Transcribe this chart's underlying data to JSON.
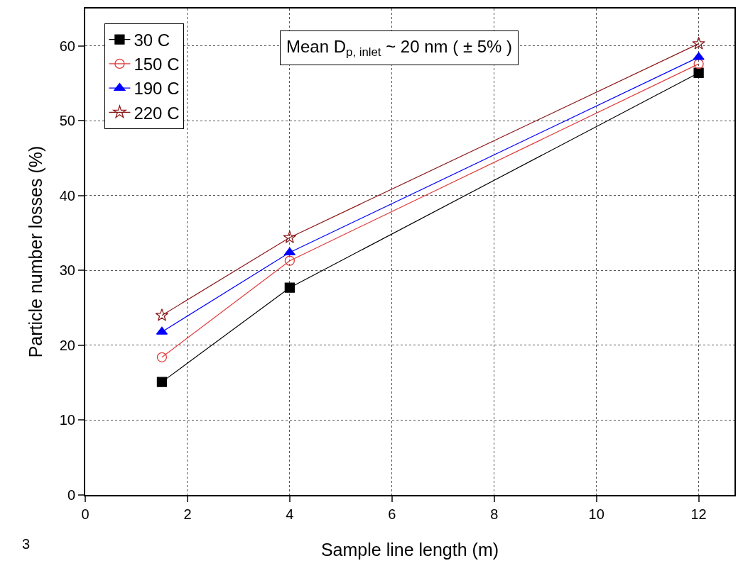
{
  "chart_data": {
    "type": "line",
    "xlabel": "Sample line length (m)",
    "ylabel": "Particle number losses (%)",
    "x": [
      1.5,
      4,
      12
    ],
    "series": [
      {
        "name": "30 C",
        "color": "#000000",
        "marker": "square",
        "values": [
          15.1,
          27.7,
          56.4
        ]
      },
      {
        "name": "150 C",
        "color": "#e03c3c",
        "marker": "circle-open",
        "values": [
          18.4,
          31.3,
          57.6
        ]
      },
      {
        "name": "190 C",
        "color": "#0000ff",
        "marker": "triangle",
        "values": [
          21.8,
          32.4,
          58.5
        ]
      },
      {
        "name": "220 C",
        "color": "#8b1a1a",
        "marker": "star-open",
        "values": [
          24.0,
          34.4,
          60.3
        ]
      }
    ],
    "xlim": [
      0,
      12.7
    ],
    "xticks": [
      0,
      2,
      4,
      6,
      8,
      10,
      12
    ],
    "ylim": [
      0,
      65
    ],
    "yticks": [
      0,
      10,
      20,
      30,
      40,
      50,
      60
    ],
    "grid": true,
    "legend": "top left",
    "line_style": "solid",
    "annotations": [
      "Mean D$_{p, inlet}$ ~ 20 nm ( ± 5% )",
      "3"
    ]
  }
}
